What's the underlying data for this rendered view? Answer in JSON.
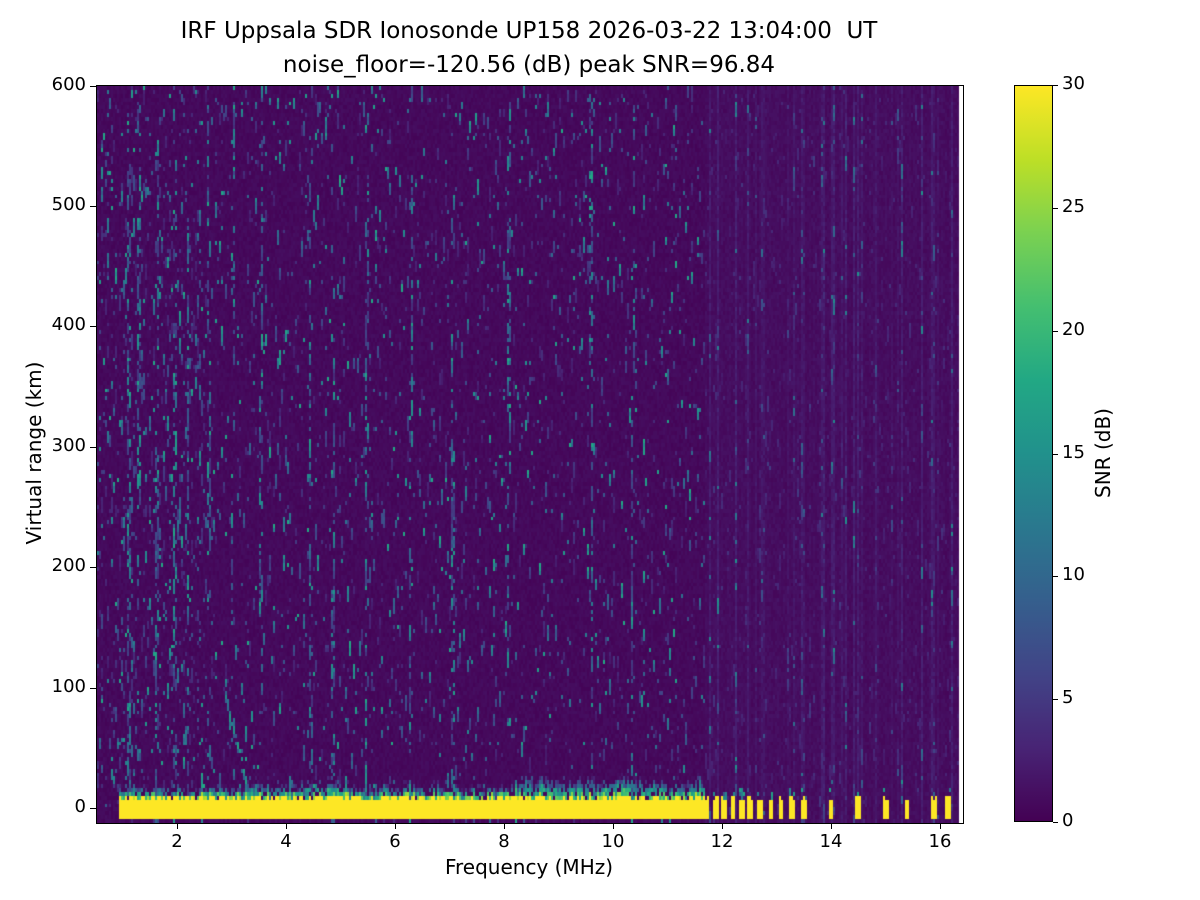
{
  "figure": {
    "title_line1": "IRF Uppsala SDR Ionosonde UP158 2026-03-22 13:04:00  UT",
    "title_line2": "noise_floor=-120.56 (dB) peak SNR=96.84",
    "station": "UP158",
    "timestamp_ut": "2026-03-22 13:04:00",
    "noise_floor_db": -120.56,
    "peak_snr_db": 96.84
  },
  "chart_data": {
    "type": "heatmap",
    "xlabel": "Frequency (MHz)",
    "ylabel": "Virtual range (km)",
    "colorbar_label": "SNR (dB)",
    "x_ticks": [
      2,
      4,
      6,
      8,
      10,
      12,
      14,
      16
    ],
    "y_ticks": [
      0,
      100,
      200,
      300,
      400,
      500,
      600
    ],
    "colorbar_ticks": [
      0,
      5,
      10,
      15,
      20,
      25,
      30
    ],
    "x_range_mhz": [
      0.53,
      16.42
    ],
    "y_range_km": [
      -12,
      600
    ],
    "snr_range_db": [
      0,
      30
    ],
    "data_extent_mhz": [
      0.53,
      16.33
    ],
    "grid": false,
    "colormap": {
      "name": "viridis",
      "stops": [
        "#440154",
        "#482475",
        "#414487",
        "#355f8d",
        "#2a788e",
        "#21918c",
        "#22a884",
        "#44bf70",
        "#7ad151",
        "#bddf26",
        "#fde725"
      ]
    },
    "features": {
      "background_snr_db": 0.5,
      "speckle_noise": {
        "density_low_freq": 0.085,
        "density": 0.045,
        "max_snr_db": 18
      },
      "ground_return_band": {
        "freq_mhz": [
          0.95,
          11.67
        ],
        "range_km": [
          -7.5,
          9
        ],
        "snr_db": 30,
        "fringe_max_km": 28,
        "description": "saturated yellow direct-signal band at 0 km across the continuous sweep"
      },
      "pulse_columns_mhz": [
        11.72,
        11.88,
        12.04,
        12.2,
        12.36,
        12.52,
        12.7,
        12.9,
        13.08,
        13.28,
        13.5,
        14.0,
        14.5,
        15.0,
        15.4,
        15.88,
        16.15
      ],
      "rfi_streak_columns_mhz": [
        1.12,
        1.3,
        1.62,
        1.95,
        2.2,
        2.58,
        3.02,
        3.55,
        4.45,
        4.85,
        5.5,
        6.3,
        7.05,
        8.1,
        9.6,
        10.35
      ],
      "striped_noise_region_mhz": [
        11.7,
        16.33
      ],
      "oblique_echo": {
        "freq_mhz": [
          2.88,
          3.34
        ],
        "range_km": [
          95,
          8
        ],
        "snr_db_max": 17,
        "description": "faint oblique trace descending to 0 km near 3 MHz"
      }
    }
  }
}
